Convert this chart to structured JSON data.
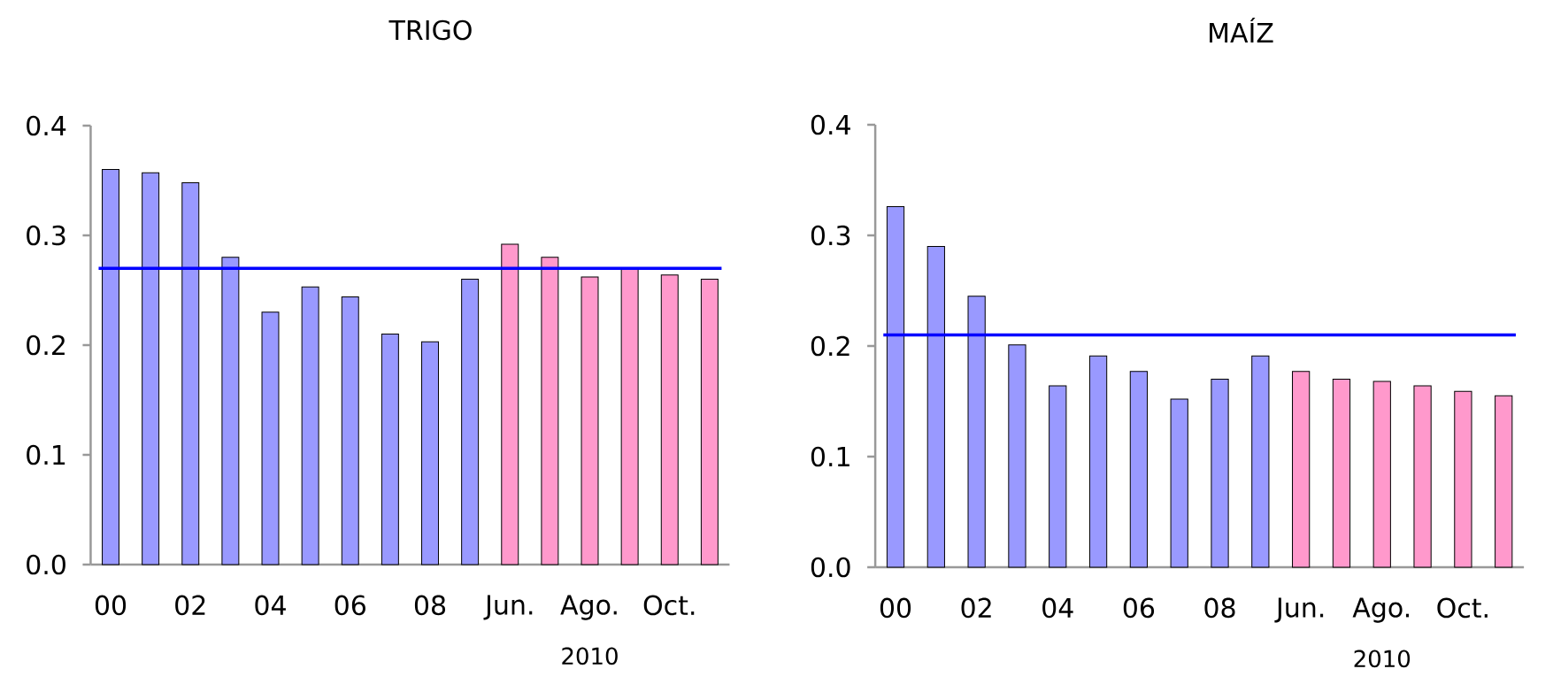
{
  "chart_data": [
    {
      "type": "bar",
      "title": "TRIGO",
      "categories": [
        "00",
        null,
        "02",
        null,
        "04",
        null,
        "06",
        null,
        "08",
        null,
        "Jun.",
        null,
        "Ago.",
        null,
        "Oct.",
        null
      ],
      "values": [
        0.36,
        0.357,
        0.348,
        0.28,
        0.23,
        0.253,
        0.244,
        0.21,
        0.203,
        0.26,
        0.292,
        0.28,
        0.262,
        0.27,
        0.264,
        0.26
      ],
      "colors": [
        "#9999ff",
        "#9999ff",
        "#9999ff",
        "#9999ff",
        "#9999ff",
        "#9999ff",
        "#9999ff",
        "#9999ff",
        "#9999ff",
        "#9999ff",
        "#ff99cc",
        "#ff99cc",
        "#ff99cc",
        "#ff99cc",
        "#ff99cc",
        "#ff99cc"
      ],
      "ylim": [
        0,
        0.4
      ],
      "yticks": [
        {
          "value": 0,
          "label": "0.0"
        },
        0.1,
        0.2,
        0.3,
        0.4
      ],
      "ref_lines": [
        {
          "axis": "y",
          "value": 0.27,
          "color": "#0000ff"
        }
      ],
      "annotations": [
        "2010"
      ]
    },
    {
      "type": "bar",
      "title": "MAÍZ",
      "categories": [
        "00",
        null,
        "02",
        null,
        "04",
        null,
        "06",
        null,
        "08",
        null,
        "Jun.",
        null,
        "Ago.",
        null,
        "Oct.",
        null
      ],
      "values": [
        0.326,
        0.29,
        0.245,
        0.201,
        0.164,
        0.191,
        0.177,
        0.152,
        0.17,
        0.191,
        0.177,
        0.17,
        0.168,
        0.164,
        0.159,
        0.155
      ],
      "colors": [
        "#9999ff",
        "#9999ff",
        "#9999ff",
        "#9999ff",
        "#9999ff",
        "#9999ff",
        "#9999ff",
        "#9999ff",
        "#9999ff",
        "#9999ff",
        "#ff99cc",
        "#ff99cc",
        "#ff99cc",
        "#ff99cc",
        "#ff99cc",
        "#ff99cc"
      ],
      "ylim": [
        0,
        0.4
      ],
      "yticks": [
        {
          "value": 0,
          "label": "0.0"
        },
        0.1,
        0.2,
        0.3,
        0.4
      ],
      "ref_lines": [
        {
          "axis": "y",
          "value": 0.21,
          "color": "#0000ff"
        }
      ],
      "annotations": [
        "2010"
      ]
    }
  ]
}
